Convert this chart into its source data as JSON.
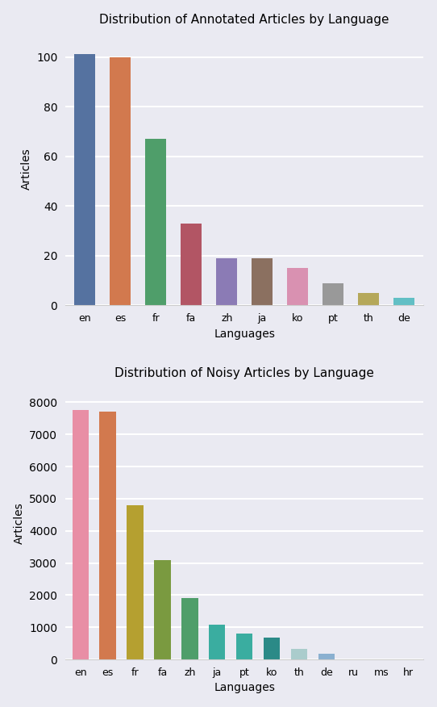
{
  "chart1": {
    "title": "Distribution of Annotated Articles by Language",
    "xlabel": "Languages",
    "ylabel": "Articles",
    "languages": [
      "en",
      "es",
      "fr",
      "fa",
      "zh",
      "ja",
      "ko",
      "pt",
      "th",
      "de"
    ],
    "values": [
      101,
      100,
      67,
      33,
      19,
      19,
      15,
      9,
      5,
      3
    ],
    "colors": [
      "#5572a0",
      "#d2794e",
      "#4f9e6a",
      "#b25564",
      "#8b7bb5",
      "#8b7060",
      "#d991b1",
      "#999999",
      "#b5a85a",
      "#62bfc5"
    ],
    "ylim": [
      0,
      110
    ],
    "yticks": [
      0,
      20,
      40,
      60,
      80,
      100
    ],
    "bg_color": "#eaeaf2"
  },
  "chart2": {
    "title": "Distribution of Noisy Articles by Language",
    "xlabel": "Languages",
    "ylabel": "Articles",
    "languages": [
      "en",
      "es",
      "fr",
      "fa",
      "zh",
      "ja",
      "pt",
      "ko",
      "th",
      "de",
      "ru",
      "ms",
      "hr"
    ],
    "values": [
      7750,
      7700,
      4800,
      3100,
      1900,
      1075,
      800,
      680,
      340,
      170,
      0,
      0,
      0
    ],
    "colors": [
      "#e88ea5",
      "#d2794e",
      "#b5a030",
      "#7a9a40",
      "#4f9e6a",
      "#3aada0",
      "#3aada0",
      "#2b8a87",
      "#aacccc",
      "#8ab0d0",
      "#cccccc",
      "#cccccc",
      "#cccccc"
    ],
    "ylim": [
      0,
      8500
    ],
    "yticks": [
      0,
      1000,
      2000,
      3000,
      4000,
      5000,
      6000,
      7000,
      8000
    ],
    "bg_color": "#eaeaf2"
  },
  "fig_bg": "#eaeaf2",
  "title_fontsize": 11,
  "label_fontsize": 10,
  "tick_fontsize": 9,
  "bar_width": 0.6,
  "grid_color": "#ffffff",
  "grid_lw": 1.5
}
